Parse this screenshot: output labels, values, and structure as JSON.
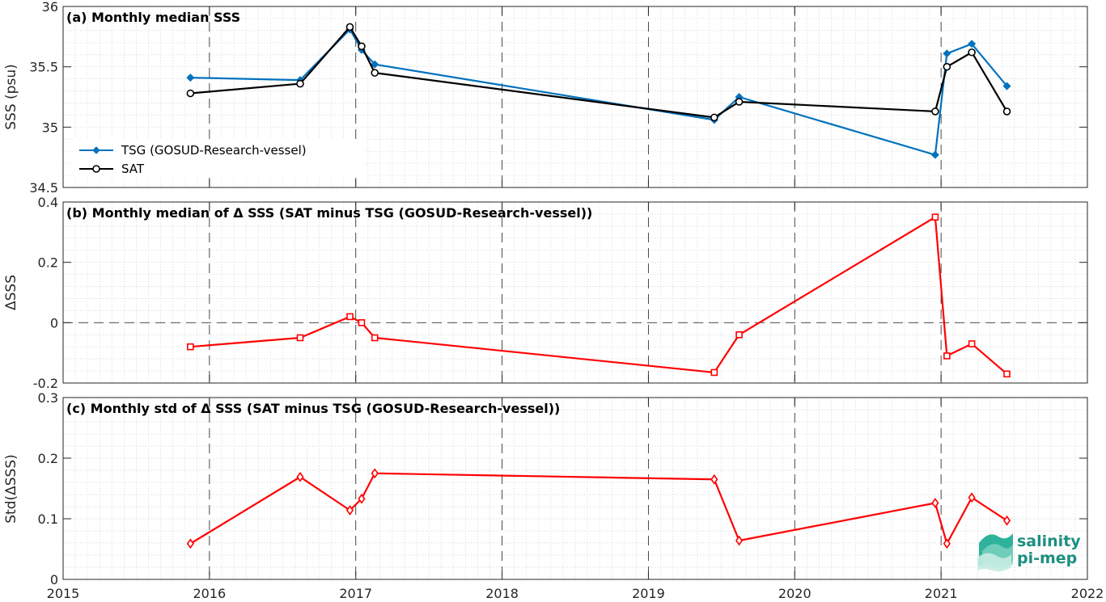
{
  "chart_data": [
    {
      "id": "a",
      "type": "line",
      "title": "(a) Monthly median SSS",
      "ylabel": "SSS (psu)",
      "ylim": [
        34.5,
        36
      ],
      "yticks": [
        34.5,
        35,
        35.5,
        36
      ],
      "ytick_labels": [
        "34.5",
        "35",
        "35.5",
        "36"
      ],
      "grid": true,
      "legend_position": "middle-left",
      "series": [
        {
          "name": "TSG (GOSUD-Research-vessel)",
          "color": "#0072bd",
          "marker": "diamond-filled",
          "x": [
            2015.87,
            2016.62,
            2016.96,
            2017.04,
            2017.13,
            2019.45,
            2019.62,
            2020.96,
            2021.04,
            2021.21,
            2021.45
          ],
          "y": [
            35.41,
            35.39,
            35.81,
            35.64,
            35.52,
            35.06,
            35.25,
            34.77,
            35.61,
            35.69,
            35.34
          ]
        },
        {
          "name": "SAT",
          "color": "#000000",
          "marker": "circle-open",
          "x": [
            2015.87,
            2016.62,
            2016.96,
            2017.04,
            2017.13,
            2019.45,
            2019.62,
            2020.96,
            2021.04,
            2021.21,
            2021.45
          ],
          "y": [
            35.28,
            35.36,
            35.83,
            35.67,
            35.45,
            35.08,
            35.21,
            35.13,
            35.5,
            35.62,
            35.13
          ]
        }
      ]
    },
    {
      "id": "b",
      "type": "line",
      "title": "(b) Monthly median of Δ SSS (SAT minus TSG (GOSUD-Research-vessel))",
      "ylabel": "ΔSSS",
      "ylim": [
        -0.2,
        0.4
      ],
      "yticks": [
        -0.2,
        0,
        0.2,
        0.4
      ],
      "ytick_labels": [
        "-0.2",
        "0",
        "0.2",
        "0.4"
      ],
      "grid": true,
      "zero_line": true,
      "series": [
        {
          "color": "#ff0000",
          "marker": "square-open",
          "x": [
            2015.87,
            2016.62,
            2016.96,
            2017.04,
            2017.13,
            2019.45,
            2019.62,
            2020.96,
            2021.04,
            2021.21,
            2021.45
          ],
          "y": [
            -0.08,
            -0.05,
            0.02,
            0.0,
            -0.05,
            -0.165,
            -0.04,
            0.35,
            -0.11,
            -0.07,
            -0.17
          ]
        }
      ]
    },
    {
      "id": "c",
      "type": "line",
      "title": "(c) Monthly std of Δ SSS (SAT minus TSG (GOSUD-Research-vessel))",
      "ylabel": "Std(ΔSSS)",
      "ylim": [
        0,
        0.3
      ],
      "yticks": [
        0,
        0.1,
        0.2,
        0.3
      ],
      "ytick_labels": [
        "0",
        "0.1",
        "0.2",
        "0.3"
      ],
      "grid": true,
      "series": [
        {
          "color": "#ff0000",
          "marker": "diamond-open",
          "x": [
            2015.87,
            2016.62,
            2016.96,
            2017.04,
            2017.13,
            2019.45,
            2019.62,
            2020.96,
            2021.04,
            2021.21,
            2021.45
          ],
          "y": [
            0.059,
            0.169,
            0.114,
            0.133,
            0.175,
            0.165,
            0.064,
            0.126,
            0.059,
            0.135,
            0.097
          ]
        }
      ]
    }
  ],
  "xaxis": {
    "xlim": [
      2015,
      2022
    ],
    "ticks": [
      2015,
      2016,
      2017,
      2018,
      2019,
      2020,
      2021,
      2022
    ],
    "tick_labels": [
      "2015",
      "2016",
      "2017",
      "2018",
      "2019",
      "2020",
      "2021",
      "2022"
    ]
  },
  "logo": {
    "line1": "salinity",
    "line2": "pi-mep"
  }
}
